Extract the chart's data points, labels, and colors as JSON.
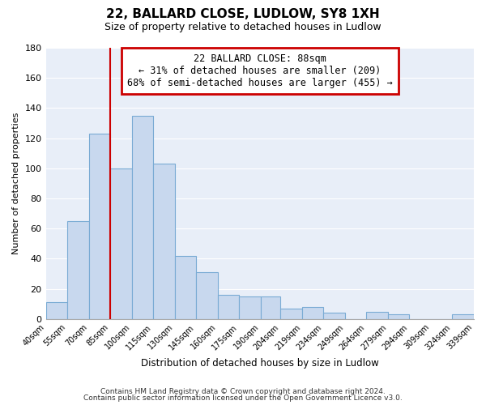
{
  "title": "22, BALLARD CLOSE, LUDLOW, SY8 1XH",
  "subtitle": "Size of property relative to detached houses in Ludlow",
  "xlabel": "Distribution of detached houses by size in Ludlow",
  "ylabel": "Number of detached properties",
  "bar_left_edges": [
    40,
    55,
    70,
    85,
    100,
    115,
    130,
    145,
    160,
    175,
    190,
    204,
    219,
    234,
    249,
    264,
    279,
    294,
    309,
    324
  ],
  "bar_widths": [
    15,
    15,
    15,
    15,
    15,
    15,
    15,
    15,
    15,
    15,
    14,
    15,
    15,
    15,
    15,
    15,
    15,
    15,
    15,
    15
  ],
  "bar_heights": [
    11,
    65,
    123,
    100,
    135,
    103,
    42,
    31,
    16,
    15,
    15,
    7,
    8,
    4,
    0,
    5,
    3,
    0,
    0,
    3
  ],
  "bar_color": "#c8d8ee",
  "bar_edge_color": "#7aabd4",
  "tick_labels": [
    "40sqm",
    "55sqm",
    "70sqm",
    "85sqm",
    "100sqm",
    "115sqm",
    "130sqm",
    "145sqm",
    "160sqm",
    "175sqm",
    "190sqm",
    "204sqm",
    "219sqm",
    "234sqm",
    "249sqm",
    "264sqm",
    "279sqm",
    "294sqm",
    "309sqm",
    "324sqm",
    "339sqm"
  ],
  "vline_x": 85,
  "vline_color": "#cc0000",
  "ylim": [
    0,
    180
  ],
  "yticks": [
    0,
    20,
    40,
    60,
    80,
    100,
    120,
    140,
    160,
    180
  ],
  "annotation_line1": "22 BALLARD CLOSE: 88sqm",
  "annotation_line2": "← 31% of detached houses are smaller (209)",
  "annotation_line3": "68% of semi-detached houses are larger (455) →",
  "annotation_box_color": "#ffffff",
  "annotation_box_edge": "#cc0000",
  "footer1": "Contains HM Land Registry data © Crown copyright and database right 2024.",
  "footer2": "Contains public sector information licensed under the Open Government Licence v3.0.",
  "background_color": "#ffffff",
  "plot_bg_color": "#e8eef8",
  "grid_color": "#ffffff"
}
